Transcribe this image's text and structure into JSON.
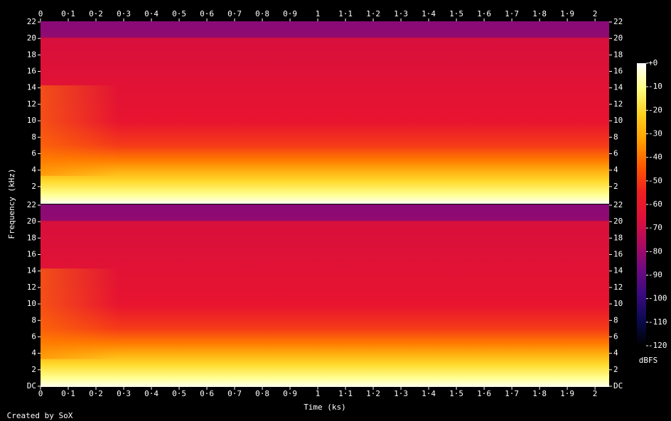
{
  "chart_data": [
    {
      "type": "spectrogram",
      "ylabel": "Frequency (kHz)",
      "xlim": [
        0,
        2.051
      ],
      "ylim": [
        0,
        22
      ],
      "xticks": [
        0,
        {
          "value": 0.1,
          "label": "0·1"
        },
        {
          "value": 0.2,
          "label": "0·2"
        },
        {
          "value": 0.3,
          "label": "0·3"
        },
        {
          "value": 0.4,
          "label": "0·4"
        },
        {
          "value": 0.5,
          "label": "0·5"
        },
        {
          "value": 0.6,
          "label": "0·6"
        },
        {
          "value": 0.7,
          "label": "0·7"
        },
        {
          "value": 0.8,
          "label": "0·8"
        },
        {
          "value": 0.9,
          "label": "0·9"
        },
        1,
        {
          "value": 1.1,
          "label": "1·1"
        },
        {
          "value": 1.2,
          "label": "1·2"
        },
        {
          "value": 1.3,
          "label": "1·3"
        },
        {
          "value": 1.4,
          "label": "1·4"
        },
        {
          "value": 1.5,
          "label": "1·5"
        },
        {
          "value": 1.6,
          "label": "1·6"
        },
        {
          "value": 1.7,
          "label": "1·7"
        },
        {
          "value": 1.8,
          "label": "1·8"
        },
        {
          "value": 1.9,
          "label": "1·9"
        },
        2
      ],
      "yticks": [
        2,
        4,
        6,
        8,
        10,
        12,
        14,
        16,
        18,
        20,
        22
      ]
    },
    {
      "type": "spectrogram",
      "xlabel": "Time (ks)",
      "xlim": [
        0,
        2.051
      ],
      "ylim": [
        0,
        22
      ],
      "xticks": [
        0,
        {
          "value": 0.1,
          "label": "0·1"
        },
        {
          "value": 0.2,
          "label": "0·2"
        },
        {
          "value": 0.3,
          "label": "0·3"
        },
        {
          "value": 0.4,
          "label": "0·4"
        },
        {
          "value": 0.5,
          "label": "0·5"
        },
        {
          "value": 0.6,
          "label": "0·6"
        },
        {
          "value": 0.7,
          "label": "0·7"
        },
        {
          "value": 0.8,
          "label": "0·8"
        },
        {
          "value": 0.9,
          "label": "0·9"
        },
        1,
        {
          "value": 1.1,
          "label": "1·1"
        },
        {
          "value": 1.2,
          "label": "1·2"
        },
        {
          "value": 1.3,
          "label": "1·3"
        },
        {
          "value": 1.4,
          "label": "1·4"
        },
        {
          "value": 1.5,
          "label": "1·5"
        },
        {
          "value": 1.6,
          "label": "1·6"
        },
        {
          "value": 1.7,
          "label": "1·7"
        },
        {
          "value": 1.8,
          "label": "1·8"
        },
        {
          "value": 1.9,
          "label": "1·9"
        },
        2
      ],
      "yticks": [
        {
          "value": 0,
          "label": "DC"
        },
        2,
        4,
        6,
        8,
        10,
        12,
        14,
        16,
        18,
        20,
        22
      ]
    }
  ],
  "colorbar": {
    "label": "dBFS",
    "zlim": [
      -120,
      0
    ],
    "ticks": [
      {
        "value": 0,
        "label": "+0"
      },
      -10,
      -20,
      -30,
      -40,
      -50,
      -60,
      -70,
      -80,
      -90,
      -100,
      -110,
      -120
    ],
    "colors": [
      "#000000",
      "#0a0a50",
      "#3a0a80",
      "#700a80",
      "#b00a60",
      "#e0103a",
      "#f02020",
      "#ff5a00",
      "#ffa000",
      "#ffd020",
      "#ffff80",
      "#ffffff"
    ]
  },
  "footer": "Created by SoX"
}
